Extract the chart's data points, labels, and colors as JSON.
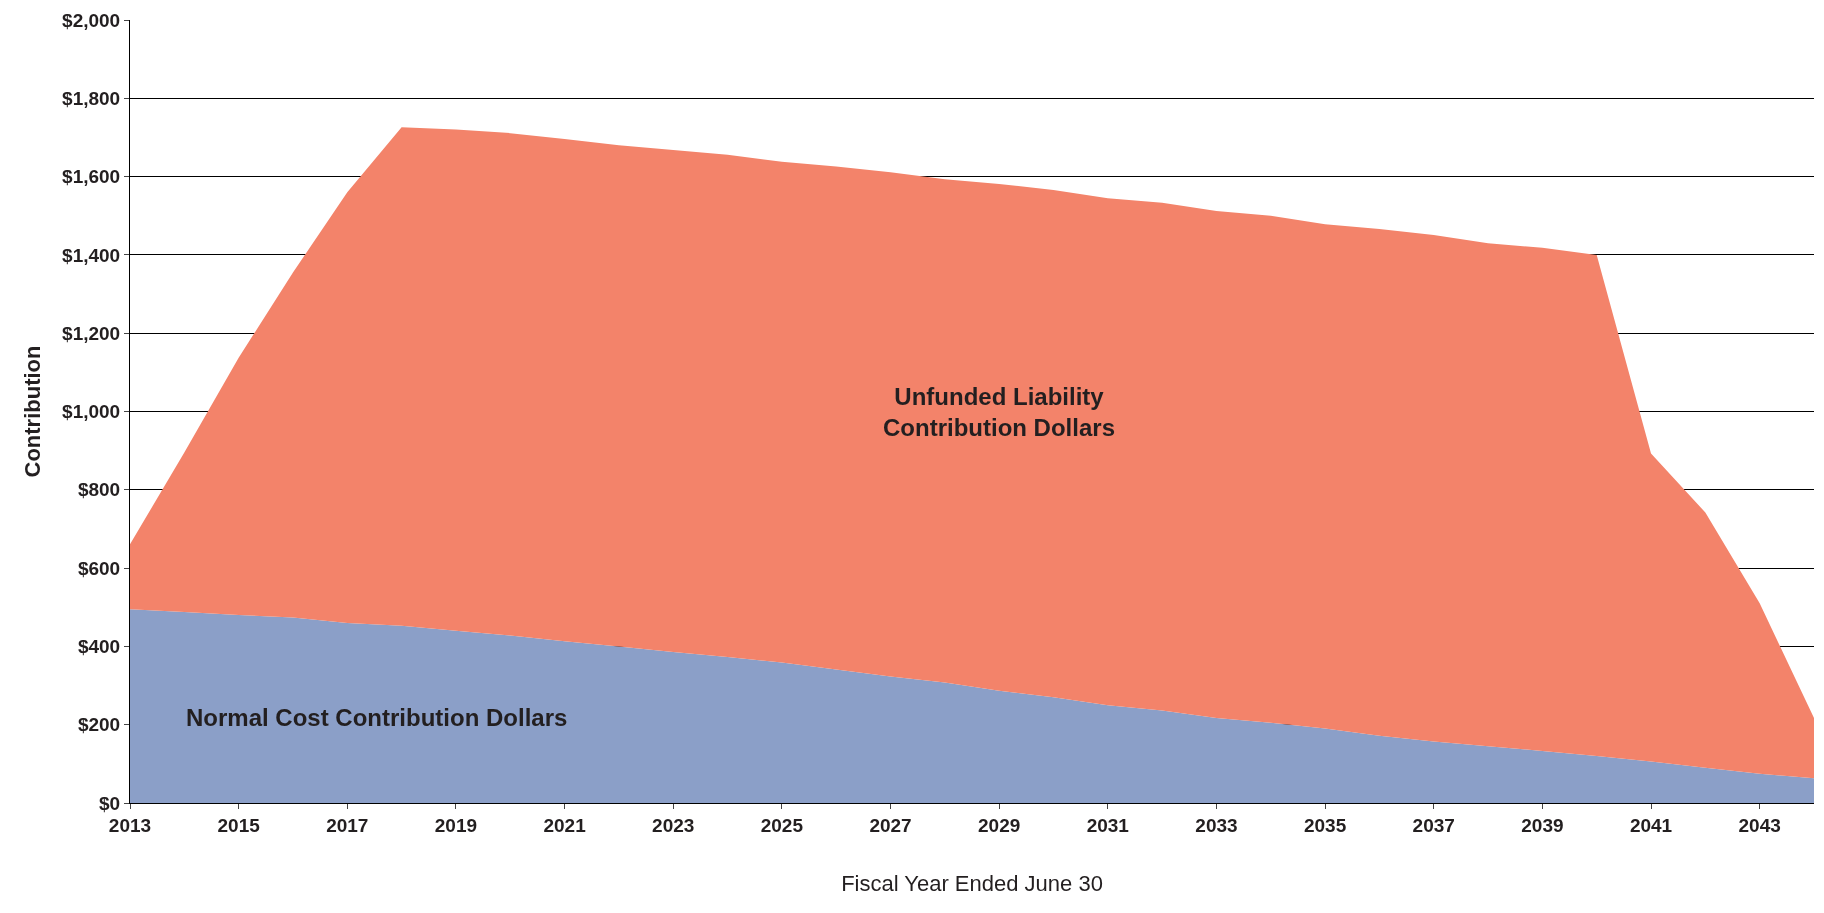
{
  "chart_data": {
    "type": "area",
    "stacked": true,
    "xlabel": "Fiscal Year Ended June 30",
    "ylabel": "Contribution",
    "x": [
      2013,
      2014,
      2015,
      2016,
      2017,
      2018,
      2019,
      2020,
      2021,
      2022,
      2023,
      2024,
      2025,
      2026,
      2027,
      2028,
      2029,
      2030,
      2031,
      2032,
      2033,
      2034,
      2035,
      2036,
      2037,
      2038,
      2039,
      2040,
      2041,
      2042,
      2043,
      2044
    ],
    "series": [
      {
        "name": "Normal Cost Contribution Dollars",
        "color": "#8b9fc8",
        "values": [
          495,
          488,
          480,
          474,
          460,
          453,
          440,
          428,
          413,
          400,
          386,
          373,
          359,
          341,
          323,
          308,
          287,
          270,
          250,
          236,
          217,
          205,
          190,
          172,
          157,
          145,
          133,
          120,
          106,
          90,
          75,
          63
        ]
      },
      {
        "name": "Unfunded Liability Contribution Dollars",
        "color": "#f3836a",
        "values": [
          166,
          407,
          657,
          881,
          1100,
          1273,
          1280,
          1283,
          1283,
          1280,
          1282,
          1283,
          1279,
          1285,
          1288,
          1285,
          1294,
          1296,
          1295,
          1297,
          1295,
          1295,
          1288,
          1294,
          1294,
          1285,
          1285,
          1280,
          787,
          652,
          435,
          154
        ]
      }
    ],
    "xlim": [
      2013,
      2044
    ],
    "xticks": [
      2013,
      2015,
      2017,
      2019,
      2021,
      2023,
      2025,
      2027,
      2029,
      2031,
      2033,
      2035,
      2037,
      2039,
      2041,
      2043
    ],
    "ylim": [
      0,
      2000
    ],
    "yticks": [
      {
        "value": 0,
        "label": "$0"
      },
      {
        "value": 200,
        "label": "$200"
      },
      {
        "value": 400,
        "label": "$400"
      },
      {
        "value": 600,
        "label": "$600"
      },
      {
        "value": 800,
        "label": "$800"
      },
      {
        "value": 1000,
        "label": "$1,000"
      },
      {
        "value": 1200,
        "label": "$1,200"
      },
      {
        "value": 1400,
        "label": "$1,400"
      },
      {
        "value": 1600,
        "label": "$1,600"
      },
      {
        "value": 1800,
        "label": "$1,800"
      },
      {
        "value": 2000,
        "label": "$2,000"
      }
    ],
    "grid": "y",
    "legend": false
  }
}
